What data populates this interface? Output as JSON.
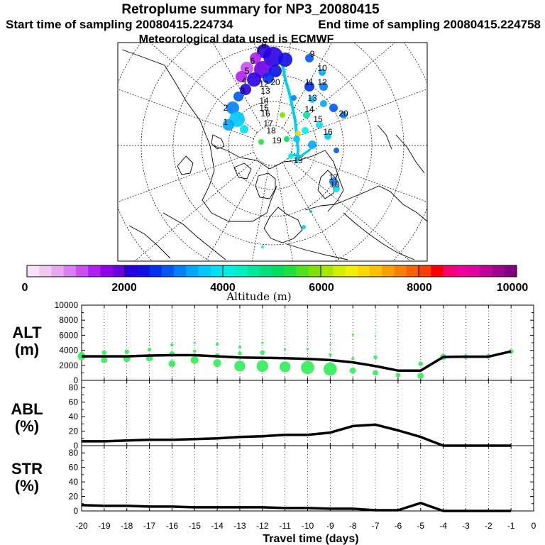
{
  "title": "Retroplume summary for NP3_20080415",
  "start_label": "Start time of sampling 20080415.224734",
  "end_label": "End time of sampling 20080415.224758",
  "met_label": "Meteorological data used is ECMWF",
  "colorbar": {
    "label": "Altitude (m)",
    "ticks": [
      "0",
      "2000",
      "4000",
      "6000",
      "8000",
      "10000"
    ],
    "colors": [
      "#f8e0f8",
      "#f0c8f0",
      "#e8a8f0",
      "#d880f0",
      "#c850f0",
      "#b020f0",
      "#9000e8",
      "#6a00e0",
      "#2800e0",
      "#1010e0",
      "#0030f0",
      "#0058f0",
      "#0080f8",
      "#00a8f8",
      "#00c8f8",
      "#00e0f0",
      "#00f0e0",
      "#00f0c0",
      "#00e8a0",
      "#00e080",
      "#00e060",
      "#20e040",
      "#50e020",
      "#80e000",
      "#a8e800",
      "#d0f000",
      "#f0f000",
      "#f8d800",
      "#f8c000",
      "#f8a000",
      "#f88000",
      "#f86000",
      "#f84000",
      "#f80000",
      "#f80070",
      "#f00098",
      "#e000a0",
      "#c00098",
      "#a00090",
      "#800080"
    ]
  },
  "map_labels": [
    "8",
    "7",
    "6",
    "5",
    "4",
    "3",
    "2",
    "1",
    "9",
    "10",
    "11",
    "12",
    "13",
    "14",
    "15",
    "16",
    "17",
    "18",
    "19",
    "20"
  ],
  "chart_data": [
    {
      "type": "scatter",
      "ylabel": "ALT\n(m)",
      "ylabel_lines": [
        "ALT",
        "(m)"
      ],
      "ylim": [
        0,
        10000
      ],
      "yticks": [
        "0",
        "2000",
        "4000",
        "6000",
        "8000",
        "10000"
      ],
      "xlim": [
        -20,
        0
      ],
      "grid": "x dotted",
      "line": {
        "x": [
          -20,
          -19,
          -18,
          -17,
          -16,
          -15,
          -14,
          -13,
          -12,
          -11,
          -10,
          -9,
          -8,
          -7,
          -6,
          -5,
          -4,
          -3,
          -2,
          -1
        ],
        "y": [
          3200,
          3200,
          3200,
          3300,
          3350,
          3350,
          3200,
          3050,
          3000,
          2950,
          2850,
          2700,
          2400,
          1900,
          1300,
          1300,
          3100,
          3150,
          3150,
          3850
        ]
      },
      "points": [
        {
          "x": -20,
          "y": 3200,
          "s": 10
        },
        {
          "x": -20,
          "y": 3600,
          "s": 5
        },
        {
          "x": -19,
          "y": 2700,
          "s": 8
        },
        {
          "x": -19,
          "y": 3700,
          "s": 6
        },
        {
          "x": -18,
          "y": 2900,
          "s": 9
        },
        {
          "x": -18,
          "y": 3800,
          "s": 6
        },
        {
          "x": -17,
          "y": 3000,
          "s": 9
        },
        {
          "x": -17,
          "y": 4100,
          "s": 5
        },
        {
          "x": -16,
          "y": 2200,
          "s": 9
        },
        {
          "x": -16,
          "y": 3500,
          "s": 7
        },
        {
          "x": -16,
          "y": 4700,
          "s": 4
        },
        {
          "x": -15,
          "y": 2700,
          "s": 10
        },
        {
          "x": -15,
          "y": 3900,
          "s": 4
        },
        {
          "x": -15,
          "y": 5000,
          "s": 3
        },
        {
          "x": -14,
          "y": 2300,
          "s": 10
        },
        {
          "x": -14,
          "y": 3300,
          "s": 6
        },
        {
          "x": -14,
          "y": 4800,
          "s": 4
        },
        {
          "x": -13,
          "y": 1900,
          "s": 14
        },
        {
          "x": -13,
          "y": 3600,
          "s": 5
        },
        {
          "x": -13,
          "y": 4400,
          "s": 4
        },
        {
          "x": -12,
          "y": 1900,
          "s": 15
        },
        {
          "x": -12,
          "y": 3700,
          "s": 6
        },
        {
          "x": -12,
          "y": 5000,
          "s": 3
        },
        {
          "x": -11,
          "y": 1800,
          "s": 14
        },
        {
          "x": -11,
          "y": 4100,
          "s": 3
        },
        {
          "x": -11,
          "y": 5500,
          "s": 2
        },
        {
          "x": -10,
          "y": 1700,
          "s": 17
        },
        {
          "x": -10,
          "y": 4200,
          "s": 3
        },
        {
          "x": -10,
          "y": 5500,
          "s": 2
        },
        {
          "x": -9,
          "y": 1500,
          "s": 17
        },
        {
          "x": -9,
          "y": 3400,
          "s": 4
        },
        {
          "x": -9,
          "y": 4800,
          "s": 2
        },
        {
          "x": -9,
          "y": 6100,
          "s": 2
        },
        {
          "x": -8,
          "y": 1300,
          "s": 8
        },
        {
          "x": -8,
          "y": 2900,
          "s": 4
        },
        {
          "x": -8,
          "y": 6100,
          "s": 3
        },
        {
          "x": -7,
          "y": 1000,
          "s": 7
        },
        {
          "x": -7,
          "y": 3100,
          "s": 5
        },
        {
          "x": -7,
          "y": 5900,
          "s": 2
        },
        {
          "x": -6,
          "y": 700,
          "s": 6
        },
        {
          "x": -6,
          "y": 5500,
          "s": 1
        },
        {
          "x": -5,
          "y": 600,
          "s": 8
        },
        {
          "x": -5,
          "y": 2200,
          "s": 6
        },
        {
          "x": -4,
          "y": 3100,
          "s": 8
        },
        {
          "x": -3,
          "y": 3150,
          "s": 6
        },
        {
          "x": -2,
          "y": 3200,
          "s": 6
        },
        {
          "x": -1,
          "y": 3850,
          "s": 6
        }
      ]
    },
    {
      "type": "line",
      "ylabel_lines": [
        "ABL",
        "(%)"
      ],
      "ylim": [
        0,
        90
      ],
      "yticks": [
        "0",
        "20",
        "40",
        "60",
        "80"
      ],
      "xlim": [
        -20,
        0
      ],
      "x": [
        -20,
        -19,
        -18,
        -17,
        -16,
        -15,
        -14,
        -13,
        -12,
        -11,
        -10,
        -9,
        -8,
        -7,
        -6,
        -5,
        -4,
        -3,
        -2,
        -1
      ],
      "y": [
        6,
        6,
        7,
        8,
        8,
        9,
        10,
        12,
        13,
        15,
        15,
        18,
        27,
        29,
        21,
        12,
        0,
        0,
        0,
        0
      ]
    },
    {
      "type": "line",
      "ylabel_lines": [
        "STR",
        "(%)"
      ],
      "ylim": [
        0,
        90
      ],
      "yticks": [
        "0",
        "20",
        "40",
        "60",
        "80"
      ],
      "xlim": [
        -20,
        0
      ],
      "x": [
        -20,
        -19,
        -18,
        -17,
        -16,
        -15,
        -14,
        -13,
        -12,
        -11,
        -10,
        -9,
        -8,
        -7,
        -6,
        -5,
        -4,
        -3,
        -2,
        -1
      ],
      "y": [
        8,
        7,
        7,
        6,
        6,
        5,
        5,
        5,
        5,
        4,
        4,
        3,
        3,
        1,
        1,
        11,
        0,
        0,
        0,
        0
      ]
    }
  ],
  "xaxis": {
    "ticks": [
      "-20",
      "-19",
      "-18",
      "-17",
      "-16",
      "-15",
      "-14",
      "-13",
      "-12",
      "-11",
      "-10",
      "-9",
      "-8",
      "-7",
      "-6",
      "-5",
      "-4",
      "-3",
      "-2",
      "-1",
      "0"
    ],
    "label": "Travel time (days)"
  }
}
